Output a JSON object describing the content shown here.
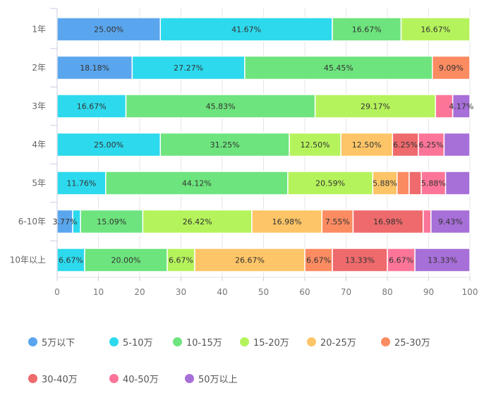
{
  "chart_data": {
    "type": "bar",
    "orientation": "horizontal",
    "stacked": true,
    "title": "",
    "xlabel": "",
    "ylabel": "",
    "xlim": [
      0,
      100
    ],
    "x_ticks": [
      "0",
      "10",
      "20",
      "30",
      "40",
      "50",
      "60",
      "70",
      "80",
      "90",
      "100"
    ],
    "grid": true,
    "legend_position": "bottom",
    "categories": [
      "1年",
      "2年",
      "3年",
      "4年",
      "5年",
      "6-10年",
      "10年以上"
    ],
    "series": [
      {
        "name": "5万以下",
        "color": "#5aa6ee",
        "values": [
          25.0,
          18.18,
          0,
          0,
          0,
          3.77,
          0
        ],
        "labels": [
          "25.00%",
          "18.18%",
          "",
          "",
          "",
          "3.77%",
          ""
        ]
      },
      {
        "name": "5-10万",
        "color": "#2dd9ed",
        "values": [
          41.67,
          27.27,
          16.67,
          25.0,
          11.76,
          1.89,
          6.67
        ],
        "labels": [
          "41.67%",
          "27.27%",
          "16.67%",
          "25.00%",
          "11.76%",
          "",
          "6.67%"
        ]
      },
      {
        "name": "10-15万",
        "color": "#6de47d",
        "values": [
          16.67,
          45.45,
          45.83,
          31.25,
          44.12,
          15.09,
          20.0
        ],
        "labels": [
          "16.67%",
          "45.45%",
          "45.83%",
          "31.25%",
          "44.12%",
          "15.09%",
          "20.00%"
        ]
      },
      {
        "name": "15-20万",
        "color": "#b5f35c",
        "values": [
          16.67,
          0,
          29.17,
          12.5,
          20.59,
          26.42,
          6.67
        ],
        "labels": [
          "16.67%",
          "",
          "29.17%",
          "12.50%",
          "20.59%",
          "26.42%",
          "6.67%"
        ]
      },
      {
        "name": "20-25万",
        "color": "#fdc567",
        "values": [
          0,
          0,
          0,
          12.5,
          5.88,
          16.98,
          26.67
        ],
        "labels": [
          "",
          "",
          "",
          "12.50%",
          "5.88%",
          "16.98%",
          "26.67%"
        ]
      },
      {
        "name": "25-30万",
        "color": "#fb8b61",
        "values": [
          0,
          9.09,
          0,
          0,
          2.94,
          7.55,
          6.67
        ],
        "labels": [
          "",
          "9.09%",
          "",
          "",
          "",
          "7.55%",
          "6.67%"
        ]
      },
      {
        "name": "30-40万",
        "color": "#ee6a6c",
        "values": [
          0,
          0,
          0,
          6.25,
          2.94,
          16.98,
          13.33
        ],
        "labels": [
          "",
          "",
          "",
          "6.25%",
          "",
          "16.98%",
          "13.33%"
        ]
      },
      {
        "name": "40-50万",
        "color": "#fc7598",
        "values": [
          0,
          0,
          4.17,
          6.25,
          5.88,
          1.89,
          6.67
        ],
        "labels": [
          "",
          "",
          "",
          "6.25%",
          "5.88%",
          "",
          "6.67%"
        ]
      },
      {
        "name": "50万以上",
        "color": "#a76fd8",
        "values": [
          0,
          0,
          4.17,
          6.25,
          5.88,
          9.43,
          13.33
        ],
        "labels": [
          "",
          "",
          "4.17%",
          "",
          "",
          "9.43%",
          "13.33%"
        ]
      }
    ]
  }
}
